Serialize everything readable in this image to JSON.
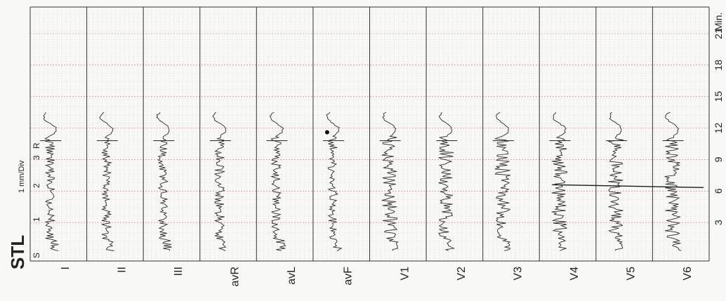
{
  "chart_data": {
    "type": "line",
    "title": "STL",
    "scale_label": "1 mm/Div",
    "scale_ticks": [
      "S",
      "1",
      "2",
      "3",
      "R"
    ],
    "time_unit": "Min.",
    "time_ticks": [
      3,
      6,
      9,
      12,
      15,
      18,
      21
    ],
    "leads": [
      "I",
      "II",
      "III",
      "avR",
      "avL",
      "avF",
      "V1",
      "V2",
      "V3",
      "V4",
      "V5",
      "V6"
    ],
    "event_marker_minutes": 6.6,
    "grid": true
  }
}
